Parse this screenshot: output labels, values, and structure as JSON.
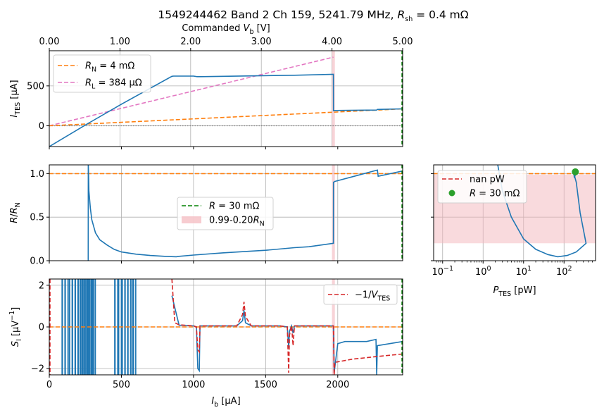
{
  "figure": {
    "title": "1549244462 Band 2 Ch 159, 5241.79 MHz, R_sh = 0.4 mΩ",
    "title_parts": [
      "1549244462 Band 2 Ch 159, 5241.79 MHz, ",
      "R",
      "sh",
      " = 0.4 mΩ"
    ],
    "top_xlabel_parts": [
      "Commanded ",
      "V",
      "b",
      " [V]"
    ],
    "bottom_xlabel_parts": [
      "I",
      "b",
      " [μA]"
    ],
    "colors": {
      "blue": "#1f77b4",
      "orange": "#ff7f0e",
      "pink": "#e377c2",
      "red": "#d62728",
      "green": "#2ca02c",
      "darkgreen": "#008000",
      "shade": "#f4b6bc",
      "grey": "#808080"
    }
  },
  "chart_data": [
    {
      "id": "iv",
      "type": "line",
      "ylabel_parts": [
        "I",
        "TES",
        " [μA]"
      ],
      "xlim": [
        0,
        2450
      ],
      "ylim": [
        -260,
        940
      ],
      "xticks_top": [
        "0.00",
        "1.00",
        "2.00",
        "3.00",
        "4.00",
        "5.00"
      ],
      "xticks_top_values": [
        0,
        490,
        980,
        1470,
        1960,
        2450
      ],
      "yticks": [
        0,
        500
      ],
      "yticklabels": [
        "0",
        "500"
      ],
      "legend": [
        {
          "label_parts": [
            "R",
            "N",
            "  = 4 mΩ"
          ],
          "color": "#ff7f0e",
          "dash": true
        },
        {
          "label_parts": [
            "R",
            "L",
            " = 384 μΩ"
          ],
          "color": "#e377c2",
          "dash": true
        }
      ],
      "series": [
        {
          "name": "I_TES",
          "color": "#1f77b4",
          "x": [
            0,
            270,
            500,
            850,
            862,
            1000,
            1025,
            1050,
            1700,
            1970,
            1970.01,
            1980,
            2270,
            2275,
            2450
          ],
          "y": [
            -260,
            30,
            270,
            620,
            622,
            622,
            615,
            615,
            633,
            645,
            190,
            192,
            197,
            205,
            212
          ]
        },
        {
          "name": "R_N fit",
          "color": "#ff7f0e",
          "dashed": true,
          "x": [
            0,
            2450
          ],
          "y": [
            0,
            212
          ]
        },
        {
          "name": "R_L line",
          "color": "#e377c2",
          "dashed": true,
          "x": [
            0,
            1970
          ],
          "y": [
            0,
            860
          ]
        },
        {
          "name": "zero",
          "color": "#808080",
          "dotted": true,
          "x": [
            0,
            2450
          ],
          "y": [
            0,
            0
          ]
        }
      ],
      "shade_x": [
        1960,
        1980
      ]
    },
    {
      "id": "rrn",
      "type": "line",
      "ylabel_parts": [
        "R",
        "/",
        "R",
        "N"
      ],
      "xlim": [
        0,
        2450
      ],
      "ylim": [
        0,
        1.1
      ],
      "yticks": [
        0.0,
        0.5,
        1.0
      ],
      "yticklabels": [
        "0.0",
        "0.5",
        "1.0"
      ],
      "legend": [
        {
          "label_parts": [
            "R",
            " = 30 mΩ"
          ],
          "color": "#008000",
          "dash": true
        },
        {
          "label_parts": [
            "0.99-0.20",
            "R",
            "N"
          ],
          "color": "#f4b6bc",
          "patch": true
        }
      ],
      "series": [
        {
          "name": "R/RN",
          "color": "#1f77b4",
          "x": [
            270,
            270.5,
            272,
            275,
            285,
            295,
            320,
            350,
            400,
            450,
            500,
            600,
            700,
            800,
            880,
            900,
            1000,
            1200,
            1500,
            1700,
            1800,
            1970,
            1970.01,
            1980,
            2275,
            2280,
            2450
          ],
          "y": [
            0.0,
            1.1,
            1.03,
            0.8,
            0.6,
            0.47,
            0.32,
            0.24,
            0.18,
            0.13,
            0.1,
            0.075,
            0.06,
            0.05,
            0.045,
            0.05,
            0.065,
            0.09,
            0.12,
            0.15,
            0.16,
            0.2,
            0.9,
            0.91,
            1.04,
            0.97,
            1.03
          ]
        },
        {
          "name": "unity",
          "color": "#ff7f0e",
          "dashed": true,
          "x": [
            0,
            2450
          ],
          "y": [
            1.0,
            1.0
          ]
        }
      ],
      "shade_x": [
        1960,
        1980
      ]
    },
    {
      "id": "si",
      "type": "line",
      "ylabel_parts": [
        "S",
        "I",
        " [μV",
        "−1",
        "]"
      ],
      "xlim": [
        0,
        2450
      ],
      "ylim": [
        -2.3,
        2.3
      ],
      "xticks": [
        0,
        500,
        1000,
        1500,
        2000
      ],
      "xticklabels": [
        "0",
        "500",
        "1000",
        "1500",
        "2000"
      ],
      "yticks": [
        -2,
        0,
        2
      ],
      "yticklabels": [
        "−2",
        "0",
        "2"
      ],
      "legend": [
        {
          "label_parts": [
            "−1/",
            "V",
            "TES"
          ],
          "color": "#d62728",
          "dash": true
        }
      ],
      "series": [
        {
          "name": "S_I",
          "color": "#1f77b4",
          "x": [
            850,
            900,
            1000,
            1020,
            1030,
            1040,
            1045,
            1100,
            1300,
            1340,
            1350,
            1360,
            1400,
            1600,
            1650,
            1660,
            1665,
            1680,
            1690,
            1700,
            1900,
            1970,
            1975,
            2000,
            2050,
            2100,
            2200,
            2265,
            2270,
            2275,
            2450
          ],
          "y": [
            1.5,
            0.08,
            0.05,
            0.0,
            -2.0,
            -2.1,
            0.05,
            0.05,
            0.05,
            0.3,
            0.8,
            0.2,
            0.05,
            0.05,
            0.0,
            -1.0,
            -0.2,
            0.05,
            -0.3,
            0.05,
            0.05,
            0.05,
            -2.2,
            -0.8,
            -0.7,
            -0.7,
            -0.7,
            -0.6,
            -2.3,
            -0.9,
            -0.7
          ]
        },
        {
          "name": "-1/V_TES",
          "color": "#d62728",
          "dashed": true,
          "x": [
            850,
            870,
            900,
            1000,
            1020,
            1030,
            1040,
            1045,
            1100,
            1300,
            1340,
            1350,
            1360,
            1400,
            1600,
            1650,
            1660,
            1665,
            1680,
            1690,
            1700,
            1900,
            1970,
            1975,
            1980,
            2100,
            2300,
            2450
          ],
          "y": [
            2.3,
            0.2,
            0.1,
            0.05,
            0.0,
            -1.1,
            -1.2,
            0.05,
            0.05,
            0.05,
            0.6,
            1.2,
            0.5,
            0.05,
            0.05,
            0.0,
            -2.2,
            -0.4,
            0.05,
            -0.9,
            0.05,
            0.05,
            0.05,
            -2.3,
            -1.7,
            -1.55,
            -1.4,
            -1.3
          ]
        },
        {
          "name": "zero",
          "color": "#ff7f0e",
          "dashed": true,
          "x": [
            0,
            2450
          ],
          "y": [
            0,
            0
          ]
        }
      ],
      "noise_x": [
        90,
        110,
        140,
        160,
        180,
        200,
        215,
        230,
        245,
        260,
        270,
        290,
        300,
        455,
        480,
        505,
        525,
        545,
        565,
        580
      ],
      "shade_x": [
        1960,
        1980
      ]
    },
    {
      "id": "ptes",
      "type": "line",
      "xscale": "log",
      "xlabel_parts": [
        "P",
        "TES",
        " [pW]"
      ],
      "xlim": [
        0.06,
        600
      ],
      "ylim": [
        0,
        1.1
      ],
      "xticks": [
        0.1,
        1,
        10,
        100
      ],
      "xticklabels": [
        [
          "10",
          "−1"
        ],
        [
          "10",
          "0"
        ],
        [
          "10",
          "1"
        ],
        [
          "10",
          "2"
        ]
      ],
      "legend": [
        {
          "label_parts": [
            "nan pW"
          ],
          "color": "#d62728",
          "dash": true
        },
        {
          "label_parts": [
            "R",
            " = 30 mΩ"
          ],
          "color": "#2ca02c",
          "dot": true
        }
      ],
      "series": [
        {
          "name": "R/RN vs P",
          "color": "#1f77b4",
          "x": [
            2.3,
            3,
            5,
            10,
            20,
            40,
            70,
            120,
            200,
            350,
            250,
            200,
            175,
            180,
            200
          ],
          "y": [
            1.1,
            0.8,
            0.5,
            0.25,
            0.13,
            0.07,
            0.045,
            0.06,
            0.1,
            0.2,
            0.55,
            0.9,
            1.0,
            0.95,
            1.02
          ]
        },
        {
          "name": "unity",
          "color": "#ff7f0e",
          "dashed": true,
          "x": [
            0.06,
            600
          ],
          "y": [
            1.0,
            1.0
          ]
        }
      ],
      "point": {
        "x": 190,
        "y": 1.02
      },
      "shade_y": [
        0.2,
        0.99
      ]
    }
  ]
}
